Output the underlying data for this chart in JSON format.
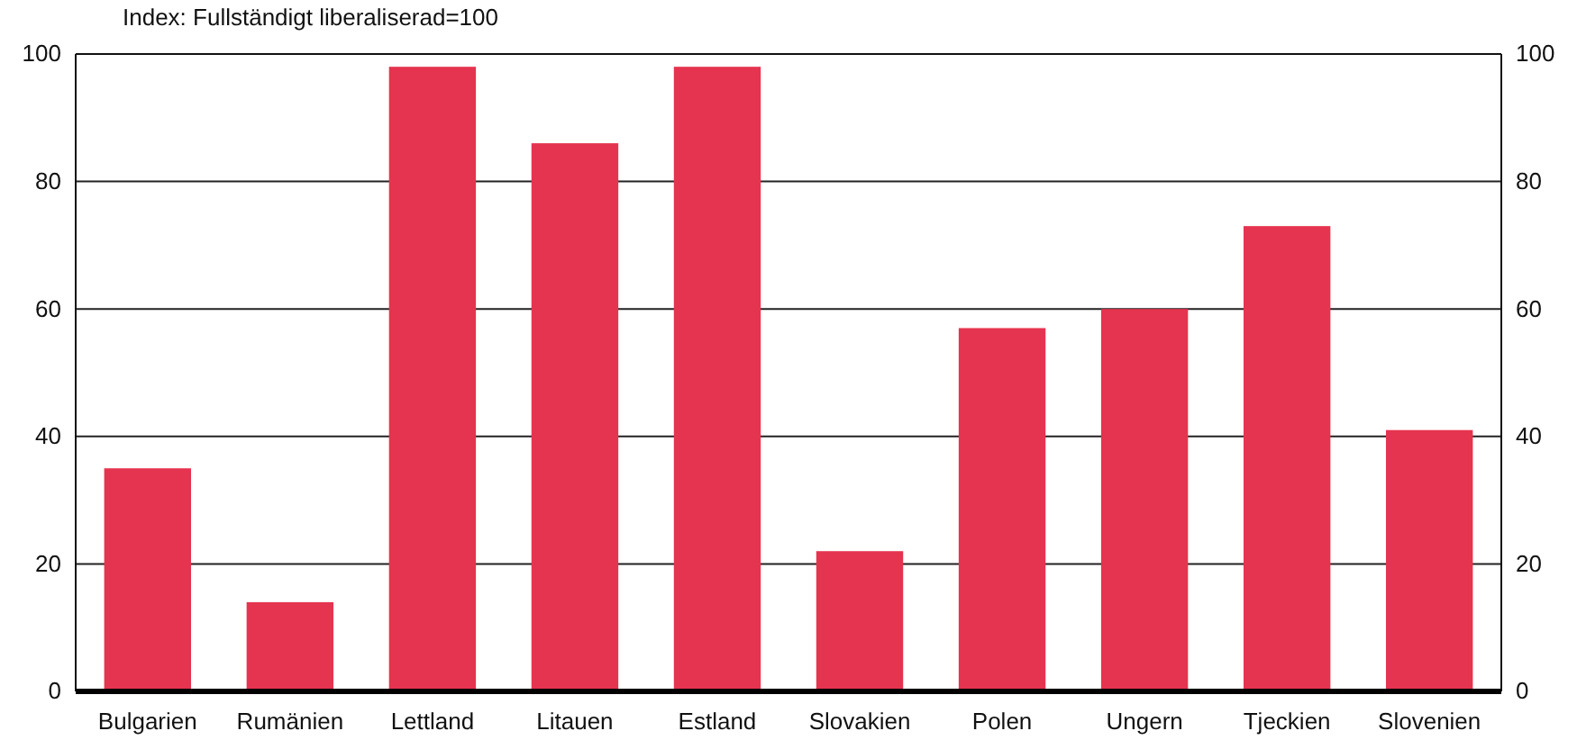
{
  "chart_data": {
    "type": "bar",
    "subtitle": "Index: Fullständigt liberaliserad=100",
    "categories": [
      "Bulgarien",
      "Rumänien",
      "Lettland",
      "Litauen",
      "Estland",
      "Slovakien",
      "Polen",
      "Ungern",
      "Tjeckien",
      "Slovenien"
    ],
    "values": [
      35,
      14,
      98,
      86,
      98,
      22,
      57,
      60,
      73,
      41
    ],
    "color": "#e5344f",
    "ylim": [
      0,
      100
    ],
    "yticks": [
      0,
      20,
      40,
      60,
      80,
      100
    ],
    "y2lim": [
      0,
      100
    ],
    "y2ticks": [
      0,
      20,
      40,
      60,
      80,
      100
    ],
    "grid": "y"
  }
}
